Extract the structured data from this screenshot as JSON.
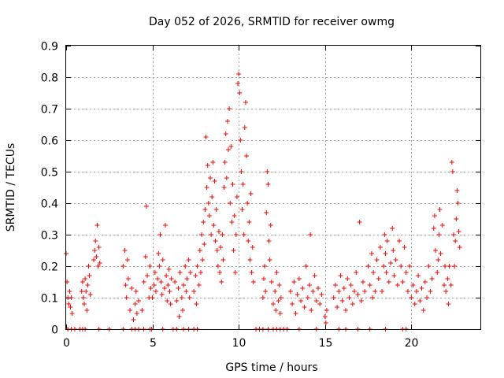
{
  "chart_data": {
    "type": "scatter",
    "title": "Day 052 of 2026, SRMTID for receiver owmg",
    "xlabel": "GPS time / hours",
    "ylabel": "SRMTID / TECUs",
    "xlim": [
      0,
      24
    ],
    "ylim": [
      0,
      0.9
    ],
    "xticks": [
      0,
      5,
      10,
      15,
      20
    ],
    "xtick_labels": [
      "0",
      "5",
      "10",
      "15",
      "20"
    ],
    "yticks": [
      0,
      0.1,
      0.2,
      0.3,
      0.4,
      0.5,
      0.6,
      0.7,
      0.8,
      0.9
    ],
    "ytick_labels": [
      "0",
      "0.1",
      "0.2",
      "0.3",
      "0.4",
      "0.5",
      "0.6",
      "0.7",
      "0.8",
      "0.9"
    ],
    "grid": true,
    "marker": "+",
    "color": "#ff0000",
    "series": [
      {
        "name": "SRMTID",
        "points": [
          [
            0.0,
            0.24
          ],
          [
            0.05,
            0.15
          ],
          [
            0.1,
            0.1
          ],
          [
            0.15,
            0.08
          ],
          [
            0.2,
            0.12
          ],
          [
            0.25,
            0.07
          ],
          [
            0.3,
            0.1
          ],
          [
            0.35,
            0.05
          ],
          [
            0.9,
            0.12
          ],
          [
            0.95,
            0.15
          ],
          [
            1.0,
            0.1
          ],
          [
            1.05,
            0.08
          ],
          [
            1.1,
            0.16
          ],
          [
            1.15,
            0.12
          ],
          [
            1.2,
            0.06
          ],
          [
            1.25,
            0.14
          ],
          [
            1.3,
            0.2
          ],
          [
            1.35,
            0.17
          ],
          [
            1.4,
            0.11
          ],
          [
            1.6,
            0.22
          ],
          [
            1.65,
            0.25
          ],
          [
            1.7,
            0.28
          ],
          [
            1.75,
            0.23
          ],
          [
            1.8,
            0.33
          ],
          [
            1.85,
            0.2
          ],
          [
            1.9,
            0.26
          ],
          [
            1.95,
            0.21
          ],
          [
            3.3,
            0.2
          ],
          [
            3.4,
            0.25
          ],
          [
            3.45,
            0.14
          ],
          [
            3.5,
            0.1
          ],
          [
            3.55,
            0.22
          ],
          [
            3.6,
            0.16
          ],
          [
            3.7,
            0.06
          ],
          [
            3.8,
            0.13
          ],
          [
            3.9,
            0.03
          ],
          [
            4.0,
            0.08
          ],
          [
            4.05,
            0.12
          ],
          [
            4.1,
            0.05
          ],
          [
            4.2,
            0.09
          ],
          [
            4.4,
            0.06
          ],
          [
            4.5,
            0.15
          ],
          [
            4.6,
            0.23
          ],
          [
            4.65,
            0.39
          ],
          [
            4.7,
            0.17
          ],
          [
            4.8,
            0.1
          ],
          [
            4.85,
            0.2
          ],
          [
            4.9,
            0.13
          ],
          [
            5.0,
            0.1
          ],
          [
            5.1,
            0.14
          ],
          [
            5.15,
            0.18
          ],
          [
            5.2,
            0.12
          ],
          [
            5.3,
            0.16
          ],
          [
            5.35,
            0.24
          ],
          [
            5.4,
            0.2
          ],
          [
            5.45,
            0.3
          ],
          [
            5.5,
            0.15
          ],
          [
            5.55,
            0.11
          ],
          [
            5.6,
            0.22
          ],
          [
            5.7,
            0.13
          ],
          [
            5.75,
            0.33
          ],
          [
            5.8,
            0.17
          ],
          [
            5.85,
            0.09
          ],
          [
            5.9,
            0.14
          ],
          [
            5.95,
            0.19
          ],
          [
            6.0,
            0.12
          ],
          [
            6.05,
            0.08
          ],
          [
            6.1,
            0.16
          ],
          [
            6.3,
            0.15
          ],
          [
            6.4,
            0.09
          ],
          [
            6.5,
            0.13
          ],
          [
            6.55,
            0.04
          ],
          [
            6.6,
            0.18
          ],
          [
            6.7,
            0.1
          ],
          [
            6.75,
            0.06
          ],
          [
            6.8,
            0.14
          ],
          [
            6.9,
            0.2
          ],
          [
            6.95,
            0.12
          ],
          [
            7.0,
            0.16
          ],
          [
            7.1,
            0.22
          ],
          [
            7.15,
            0.1
          ],
          [
            7.2,
            0.18
          ],
          [
            7.4,
            0.12
          ],
          [
            7.5,
            0.17
          ],
          [
            7.55,
            0.08
          ],
          [
            7.6,
            0.2
          ],
          [
            7.7,
            0.14
          ],
          [
            7.75,
            0.25
          ],
          [
            7.8,
            0.18
          ],
          [
            7.85,
            0.3
          ],
          [
            7.9,
            0.22
          ],
          [
            7.95,
            0.34
          ],
          [
            8.0,
            0.27
          ],
          [
            8.05,
            0.38
          ],
          [
            8.1,
            0.61
          ],
          [
            8.15,
            0.45
          ],
          [
            8.2,
            0.52
          ],
          [
            8.25,
            0.4
          ],
          [
            8.3,
            0.36
          ],
          [
            8.35,
            0.48
          ],
          [
            8.4,
            0.3
          ],
          [
            8.45,
            0.42
          ],
          [
            8.5,
            0.53
          ],
          [
            8.55,
            0.33
          ],
          [
            8.6,
            0.47
          ],
          [
            8.65,
            0.28
          ],
          [
            8.7,
            0.38
          ],
          [
            8.75,
            0.25
          ],
          [
            8.8,
            0.2
          ],
          [
            8.85,
            0.31
          ],
          [
            8.9,
            0.18
          ],
          [
            8.95,
            0.26
          ],
          [
            9.0,
            0.15
          ],
          [
            9.05,
            0.3
          ],
          [
            9.1,
            0.22
          ],
          [
            9.15,
            0.45
          ],
          [
            9.2,
            0.53
          ],
          [
            9.25,
            0.62
          ],
          [
            9.3,
            0.48
          ],
          [
            9.35,
            0.66
          ],
          [
            9.4,
            0.57
          ],
          [
            9.45,
            0.7
          ],
          [
            9.5,
            0.4
          ],
          [
            9.55,
            0.58
          ],
          [
            9.6,
            0.34
          ],
          [
            9.65,
            0.46
          ],
          [
            9.7,
            0.25
          ],
          [
            9.75,
            0.36
          ],
          [
            9.8,
            0.18
          ],
          [
            9.85,
            0.3
          ],
          [
            9.9,
            0.42
          ],
          [
            9.95,
            0.78
          ],
          [
            10.0,
            0.81
          ],
          [
            10.05,
            0.75
          ],
          [
            10.1,
            0.6
          ],
          [
            10.15,
            0.5
          ],
          [
            10.2,
            0.38
          ],
          [
            10.25,
            0.46
          ],
          [
            10.3,
            0.3
          ],
          [
            10.35,
            0.64
          ],
          [
            10.4,
            0.72
          ],
          [
            10.45,
            0.55
          ],
          [
            10.5,
            0.4
          ],
          [
            10.55,
            0.28
          ],
          [
            10.6,
            0.34
          ],
          [
            10.65,
            0.22
          ],
          [
            10.7,
            0.43
          ],
          [
            10.75,
            0.18
          ],
          [
            10.8,
            0.26
          ],
          [
            10.85,
            0.15
          ],
          [
            11.4,
            0.1
          ],
          [
            11.45,
            0.16
          ],
          [
            11.5,
            0.2
          ],
          [
            11.55,
            0.12
          ],
          [
            11.6,
            0.37
          ],
          [
            11.65,
            0.5
          ],
          [
            11.7,
            0.46
          ],
          [
            11.75,
            0.28
          ],
          [
            11.8,
            0.22
          ],
          [
            11.85,
            0.33
          ],
          [
            11.9,
            0.15
          ],
          [
            12.0,
            0.08
          ],
          [
            12.1,
            0.12
          ],
          [
            12.15,
            0.06
          ],
          [
            12.2,
            0.18
          ],
          [
            12.3,
            0.09
          ],
          [
            12.35,
            0.14
          ],
          [
            12.4,
            0.05
          ],
          [
            12.45,
            0.1
          ],
          [
            13.0,
            0.12
          ],
          [
            13.1,
            0.08
          ],
          [
            13.2,
            0.15
          ],
          [
            13.3,
            0.05
          ],
          [
            13.4,
            0.11
          ],
          [
            13.5,
            0.16
          ],
          [
            13.6,
            0.09
          ],
          [
            13.7,
            0.13
          ],
          [
            13.8,
            0.07
          ],
          [
            13.9,
            0.2
          ],
          [
            14.0,
            0.1
          ],
          [
            14.1,
            0.14
          ],
          [
            14.15,
            0.3
          ],
          [
            14.2,
            0.06
          ],
          [
            14.3,
            0.12
          ],
          [
            14.4,
            0.17
          ],
          [
            14.5,
            0.09
          ],
          [
            14.6,
            0.13
          ],
          [
            14.7,
            0.08
          ],
          [
            14.8,
            0.11
          ],
          [
            15.0,
            0.04
          ],
          [
            15.05,
            0.02
          ],
          [
            15.1,
            0.06
          ],
          [
            15.5,
            0.1
          ],
          [
            15.6,
            0.14
          ],
          [
            15.7,
            0.07
          ],
          [
            15.8,
            0.12
          ],
          [
            15.9,
            0.17
          ],
          [
            16.0,
            0.09
          ],
          [
            16.1,
            0.13
          ],
          [
            16.2,
            0.06
          ],
          [
            16.3,
            0.16
          ],
          [
            16.4,
            0.1
          ],
          [
            16.5,
            0.14
          ],
          [
            16.6,
            0.08
          ],
          [
            16.7,
            0.12
          ],
          [
            16.8,
            0.18
          ],
          [
            16.9,
            0.11
          ],
          [
            17.0,
            0.34
          ],
          [
            17.1,
            0.09
          ],
          [
            17.2,
            0.15
          ],
          [
            17.3,
            0.12
          ],
          [
            17.5,
            0.2
          ],
          [
            17.6,
            0.14
          ],
          [
            17.7,
            0.24
          ],
          [
            17.75,
            0.1
          ],
          [
            17.8,
            0.18
          ],
          [
            17.9,
            0.12
          ],
          [
            18.0,
            0.22
          ],
          [
            18.1,
            0.16
          ],
          [
            18.2,
            0.26
          ],
          [
            18.3,
            0.12
          ],
          [
            18.4,
            0.2
          ],
          [
            18.45,
            0.3
          ],
          [
            18.5,
            0.24
          ],
          [
            18.55,
            0.18
          ],
          [
            18.6,
            0.28
          ],
          [
            18.7,
            0.15
          ],
          [
            18.8,
            0.21
          ],
          [
            18.9,
            0.32
          ],
          [
            18.95,
            0.25
          ],
          [
            19.0,
            0.17
          ],
          [
            19.1,
            0.22
          ],
          [
            19.2,
            0.14
          ],
          [
            19.3,
            0.28
          ],
          [
            19.4,
            0.2
          ],
          [
            19.5,
            0.15
          ],
          [
            19.6,
            0.26
          ],
          [
            19.7,
            0.18
          ],
          [
            19.8,
            0.12
          ],
          [
            19.9,
            0.2
          ],
          [
            20.0,
            0.1
          ],
          [
            20.1,
            0.14
          ],
          [
            20.2,
            0.08
          ],
          [
            20.3,
            0.12
          ],
          [
            20.4,
            0.17
          ],
          [
            20.5,
            0.09
          ],
          [
            20.6,
            0.13
          ],
          [
            20.7,
            0.06
          ],
          [
            20.8,
            0.15
          ],
          [
            20.9,
            0.1
          ],
          [
            21.0,
            0.2
          ],
          [
            21.1,
            0.12
          ],
          [
            21.2,
            0.16
          ],
          [
            21.3,
            0.32
          ],
          [
            21.35,
            0.36
          ],
          [
            21.4,
            0.25
          ],
          [
            21.5,
            0.18
          ],
          [
            21.55,
            0.22
          ],
          [
            21.6,
            0.3
          ],
          [
            21.65,
            0.38
          ],
          [
            21.7,
            0.24
          ],
          [
            21.8,
            0.33
          ],
          [
            21.9,
            0.14
          ],
          [
            21.95,
            0.2
          ],
          [
            22.0,
            0.12
          ],
          [
            22.1,
            0.16
          ],
          [
            22.15,
            0.08
          ],
          [
            22.2,
            0.2
          ],
          [
            22.3,
            0.14
          ],
          [
            22.35,
            0.53
          ],
          [
            22.4,
            0.5
          ],
          [
            22.45,
            0.3
          ],
          [
            22.5,
            0.2
          ],
          [
            22.55,
            0.28
          ],
          [
            22.6,
            0.35
          ],
          [
            22.65,
            0.44
          ],
          [
            22.7,
            0.4
          ],
          [
            22.75,
            0.31
          ],
          [
            22.8,
            0.26
          ]
        ]
      },
      {
        "name": "zero level",
        "points": [
          [
            0.1,
            0
          ],
          [
            0.3,
            0
          ],
          [
            0.5,
            0
          ],
          [
            0.8,
            0
          ],
          [
            0.95,
            0
          ],
          [
            1.1,
            0
          ],
          [
            1.9,
            0
          ],
          [
            2.5,
            0
          ],
          [
            3.3,
            0
          ],
          [
            3.8,
            0
          ],
          [
            4.0,
            0
          ],
          [
            4.2,
            0
          ],
          [
            4.5,
            0
          ],
          [
            4.85,
            0
          ],
          [
            4.95,
            0
          ],
          [
            5.6,
            0
          ],
          [
            6.2,
            0
          ],
          [
            6.4,
            0
          ],
          [
            6.8,
            0
          ],
          [
            7.1,
            0
          ],
          [
            7.4,
            0
          ],
          [
            7.6,
            0
          ],
          [
            11.0,
            0
          ],
          [
            11.2,
            0
          ],
          [
            11.4,
            0
          ],
          [
            11.7,
            0
          ],
          [
            12.0,
            0
          ],
          [
            12.2,
            0
          ],
          [
            12.4,
            0
          ],
          [
            12.6,
            0
          ],
          [
            12.8,
            0
          ],
          [
            13.5,
            0
          ],
          [
            14.5,
            0
          ],
          [
            15.8,
            0
          ],
          [
            16.2,
            0
          ],
          [
            16.9,
            0
          ],
          [
            17.6,
            0
          ],
          [
            18.5,
            0
          ],
          [
            19.5,
            0
          ],
          [
            19.7,
            0
          ]
        ]
      }
    ]
  }
}
